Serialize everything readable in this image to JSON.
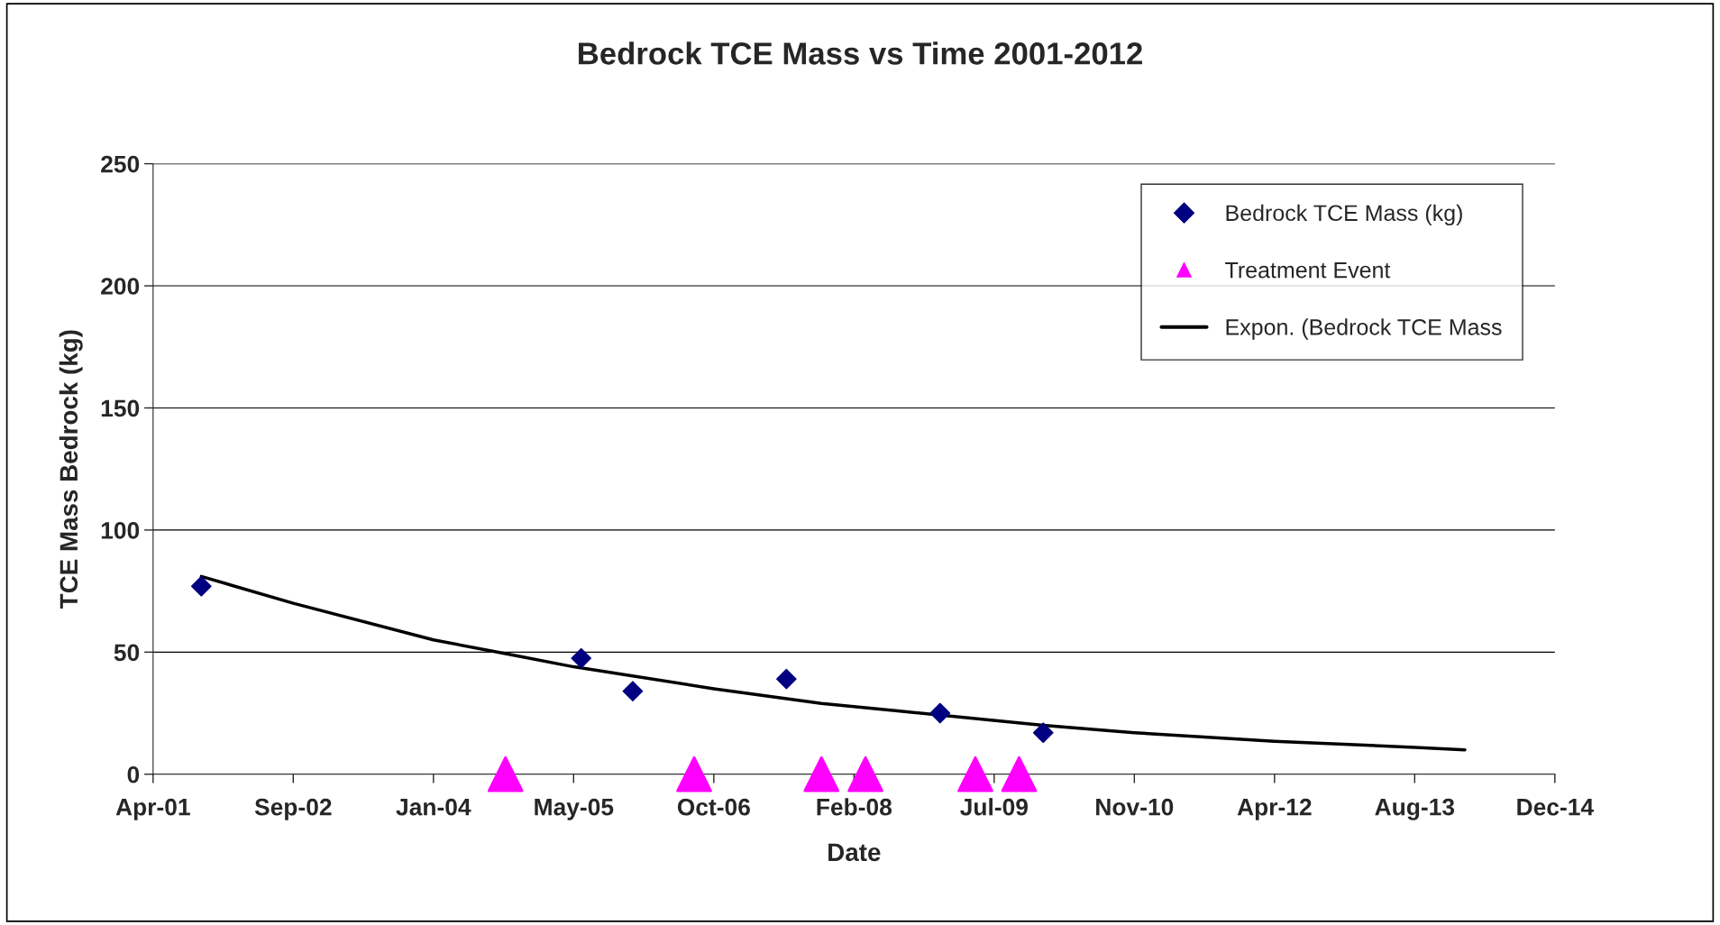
{
  "chart_data": {
    "type": "scatter",
    "title": "Bedrock TCE Mass vs Time 2001-2012",
    "xlabel": "Date",
    "ylabel": "TCE Mass Bedrock (kg)",
    "series": [
      {
        "name": "Bedrock TCE Mass (kg)",
        "marker": "diamond",
        "color": "#000080",
        "x": [
          "2001-10-09",
          "2005-06-25",
          "2005-12-26",
          "2007-06-27",
          "2008-12-26",
          "2009-12-29"
        ],
        "values": [
          77,
          47.5,
          34,
          39,
          25,
          17
        ]
      },
      {
        "name": "Treatment Event",
        "marker": "triangle",
        "color": "#ff00ff",
        "x": [
          "2004-09-28",
          "2006-08-02",
          "2007-10-30",
          "2008-04-04",
          "2009-05-01",
          "2009-10-04"
        ],
        "values": [
          0,
          0,
          0,
          0,
          0,
          0
        ]
      },
      {
        "name": "Expon. (Bedrock TCE Mass",
        "type": "line",
        "marker": "none",
        "line_style": "solid",
        "color": "#000000",
        "x": [
          "2001-10-09",
          "2002-09-02",
          "2004-01-15",
          "2004-09-28",
          "2005-05-29",
          "2006-10-11",
          "2007-10-30",
          "2008-07-20",
          "2009-12-29",
          "2010-11-19",
          "2012-04-02",
          "2013-08-15",
          "2014-02-10"
        ],
        "values": [
          81,
          70,
          55,
          49.4,
          44,
          35,
          29,
          26,
          20,
          17,
          13.5,
          11,
          10
        ]
      }
    ],
    "xlim": [
      "2001-04-20",
      "2014-12-28"
    ],
    "xticks": [
      {
        "value": "2001-04-20",
        "label": "Apr-01"
      },
      {
        "value": "2002-09-02",
        "label": "Sep-02"
      },
      {
        "value": "2004-01-15",
        "label": "Jan-04"
      },
      {
        "value": "2005-05-29",
        "label": "May-05"
      },
      {
        "value": "2006-10-11",
        "label": "Oct-06"
      },
      {
        "value": "2008-02-23",
        "label": "Feb-08"
      },
      {
        "value": "2009-07-07",
        "label": "Jul-09"
      },
      {
        "value": "2010-11-19",
        "label": "Nov-10"
      },
      {
        "value": "2012-04-02",
        "label": "Apr-12"
      },
      {
        "value": "2013-08-15",
        "label": "Aug-13"
      },
      {
        "value": "2014-12-28",
        "label": "Dec-14"
      }
    ],
    "ylim": [
      0,
      250
    ],
    "yticks": [
      0,
      50,
      100,
      150,
      200,
      250
    ],
    "grid": "y",
    "legend": "top right"
  }
}
